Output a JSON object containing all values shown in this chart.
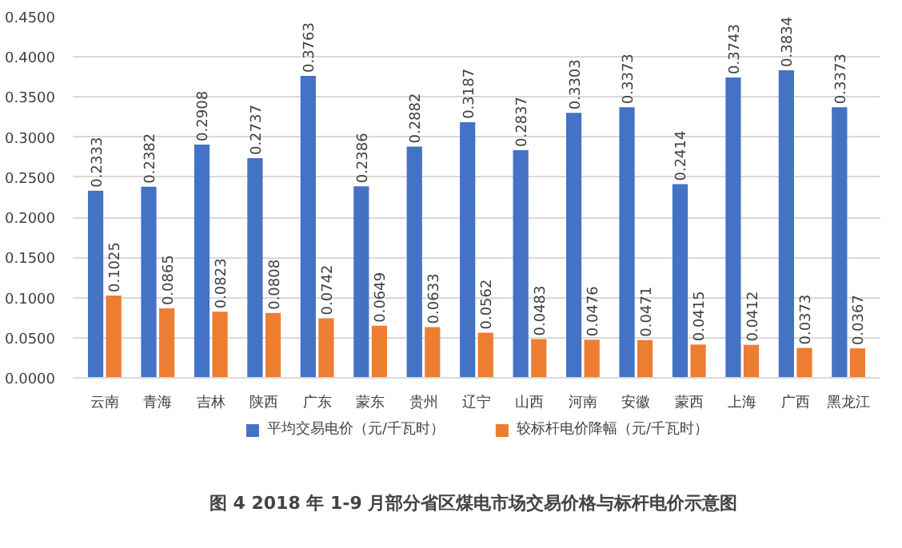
{
  "chart_data": {
    "type": "bar",
    "title": "图 4  2018 年 1-9 月部分省区煤电市场交易价格与标杆电价示意图",
    "categories": [
      "云南",
      "青海",
      "吉林",
      "陕西",
      "广东",
      "蒙东",
      "贵州",
      "辽宁",
      "山西",
      "河南",
      "安徽",
      "蒙西",
      "上海",
      "广西",
      "黑龙江"
    ],
    "series": [
      {
        "name": "平均交易电价（元/千瓦时）",
        "color": "#4472c4",
        "values": [
          0.2333,
          0.2382,
          0.2908,
          0.2737,
          0.3763,
          0.2386,
          0.2882,
          0.3187,
          0.2837,
          0.3303,
          0.3373,
          0.2414,
          0.3743,
          0.3834,
          0.3373
        ]
      },
      {
        "name": "较标杆电价降幅（元/千瓦时）",
        "color": "#ed7d31",
        "values": [
          0.1025,
          0.0865,
          0.0823,
          0.0808,
          0.0742,
          0.0649,
          0.0633,
          0.0562,
          0.0483,
          0.0476,
          0.0471,
          0.0415,
          0.0412,
          0.0373,
          0.0367
        ]
      }
    ],
    "ylim": [
      0,
      0.45
    ],
    "yticks": [
      {
        "value": 0,
        "label": "0.0000"
      },
      {
        "value": 0.05,
        "label": "0.0500"
      },
      {
        "value": 0.1,
        "label": "0.1000"
      },
      {
        "value": 0.15,
        "label": "0.1500"
      },
      {
        "value": 0.2,
        "label": "0.2000"
      },
      {
        "value": 0.25,
        "label": "0.2500"
      },
      {
        "value": 0.3,
        "label": "0.3000"
      },
      {
        "value": 0.35,
        "label": "0.3500"
      },
      {
        "value": 0.4,
        "label": "0.4000"
      },
      {
        "value": 0.45,
        "label": "0.4500"
      }
    ],
    "grid": "y",
    "legend": "bottom",
    "data_labels": true
  }
}
